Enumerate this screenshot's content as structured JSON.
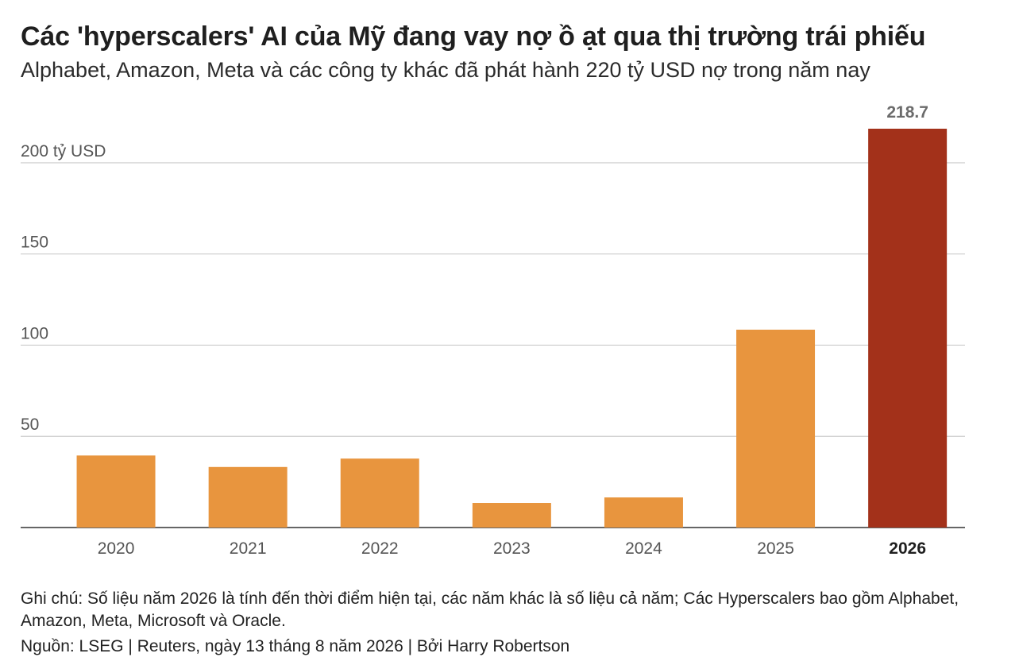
{
  "chart_data": {
    "type": "bar",
    "title": "Các 'hyperscalers' AI của Mỹ đang vay nợ ồ ạt qua thị trường trái phiếu",
    "subtitle": "Alphabet, Amazon, Meta và các công ty khác đã phát hành 220 tỷ USD nợ trong năm nay",
    "categories": [
      "2020",
      "2021",
      "2022",
      "2023",
      "2024",
      "2025",
      "2026"
    ],
    "values": [
      39.5,
      33.2,
      37.8,
      13.5,
      16.5,
      108.5,
      218.7
    ],
    "highlight_category": "2026",
    "highlight_label": "218.7",
    "ylim": [
      0,
      218.7
    ],
    "yticks": [
      {
        "value": 50,
        "label": "50"
      },
      {
        "value": 100,
        "label": "100"
      },
      {
        "value": 150,
        "label": "150"
      },
      {
        "value": 200,
        "label": "200 tỷ USD"
      }
    ],
    "grid": true,
    "colors": {
      "bar": "#e8953e",
      "highlight_bar": "#a3311a",
      "grid": "#cccccc",
      "axis": "#333333",
      "tick_label": "#555555",
      "value_label": "#6b6b6b"
    }
  },
  "note": "Ghi chú: Số liệu năm 2026 là tính đến thời điểm hiện tại, các năm khác là số liệu cả năm; Các Hyperscalers bao gồm Alphabet, Amazon, Meta, Microsoft và Oracle.",
  "source": "Nguồn: LSEG | Reuters, ngày 13 tháng 8 năm 2026 | Bởi Harry Robertson"
}
